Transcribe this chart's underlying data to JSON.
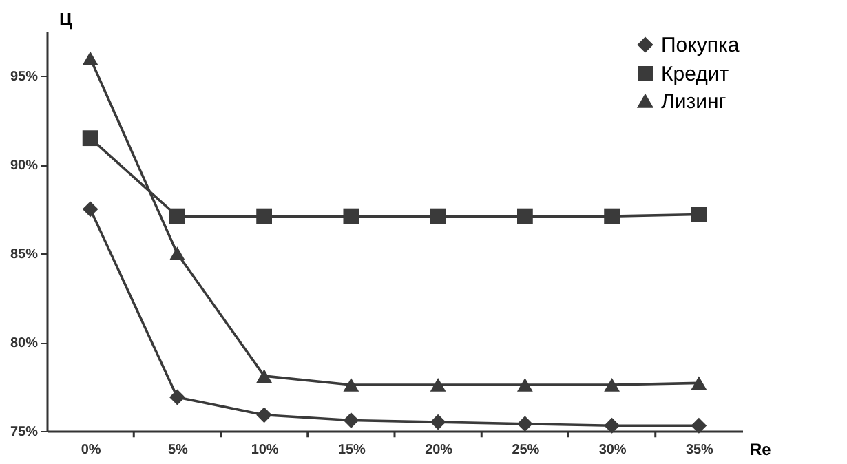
{
  "chart_data": {
    "type": "line",
    "xlabel": "Re",
    "ylabel": "Ц",
    "categories": [
      "0%",
      "5%",
      "10%",
      "15%",
      "20%",
      "25%",
      "30%",
      "35%"
    ],
    "series": [
      {
        "name": "Покупка",
        "color": "#3a3a3a",
        "marker": "diamond",
        "values": [
          87.5,
          76.9,
          75.9,
          75.6,
          75.5,
          75.4,
          75.3,
          75.3
        ]
      },
      {
        "name": "Кредит",
        "color": "#3a3a3a",
        "marker": "square",
        "values": [
          91.5,
          87.1,
          87.1,
          87.1,
          87.1,
          87.1,
          87.1,
          87.2
        ]
      },
      {
        "name": "Лизинг",
        "color": "#3a3a3a",
        "marker": "triangle",
        "values": [
          96.0,
          85.0,
          78.1,
          77.6,
          77.6,
          77.6,
          77.6,
          77.7
        ]
      }
    ],
    "ylim": [
      75,
      97.5
    ],
    "yticks": [
      {
        "value": 75,
        "label": "75%"
      },
      {
        "value": 80,
        "label": "80%"
      },
      {
        "value": 85,
        "label": "85%"
      },
      {
        "value": 90,
        "label": "90%"
      },
      {
        "value": 95,
        "label": "95%"
      }
    ],
    "grid": false,
    "legend": "top right"
  }
}
